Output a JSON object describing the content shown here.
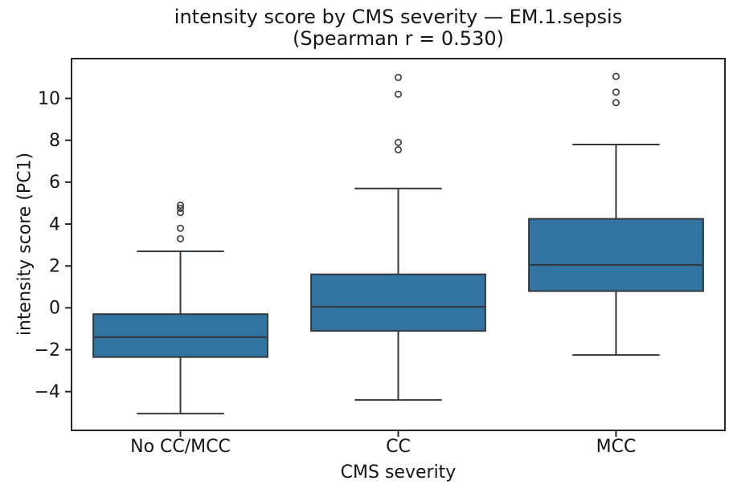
{
  "chart_data": {
    "type": "box",
    "title": "intensity score by CMS severity — EM.1.sepsis",
    "subtitle": "(Spearman r = 0.530)",
    "xlabel": "CMS severity",
    "ylabel": "intensity score (PC1)",
    "categories": [
      "No CC/MCC",
      "CC",
      "MCC"
    ],
    "series": [
      {
        "name": "No CC/MCC",
        "whisker_low": -5.05,
        "q1": -2.35,
        "median": -1.4,
        "q3": -0.3,
        "whisker_high": 2.7,
        "outliers": [
          3.3,
          3.8,
          4.55,
          4.75,
          4.9
        ]
      },
      {
        "name": "CC",
        "whisker_low": -4.4,
        "q1": -1.1,
        "median": 0.05,
        "q3": 1.6,
        "whisker_high": 5.7,
        "outliers": [
          7.55,
          7.9,
          10.2,
          11.0
        ]
      },
      {
        "name": "MCC",
        "whisker_low": -2.25,
        "q1": 0.8,
        "median": 2.05,
        "q3": 4.25,
        "whisker_high": 7.8,
        "outliers": [
          9.8,
          10.3,
          11.05
        ]
      }
    ],
    "ylim": [
      -5.85,
      11.9
    ],
    "yticks": [
      10,
      8,
      6,
      4,
      2,
      0,
      -2,
      -4
    ],
    "grid": false,
    "legend": null,
    "style": {
      "box_fill": "#3274a1",
      "line_color": "#33383e",
      "spine_color": "#262626",
      "text_color": "#151515",
      "background": "#ffffff"
    }
  }
}
